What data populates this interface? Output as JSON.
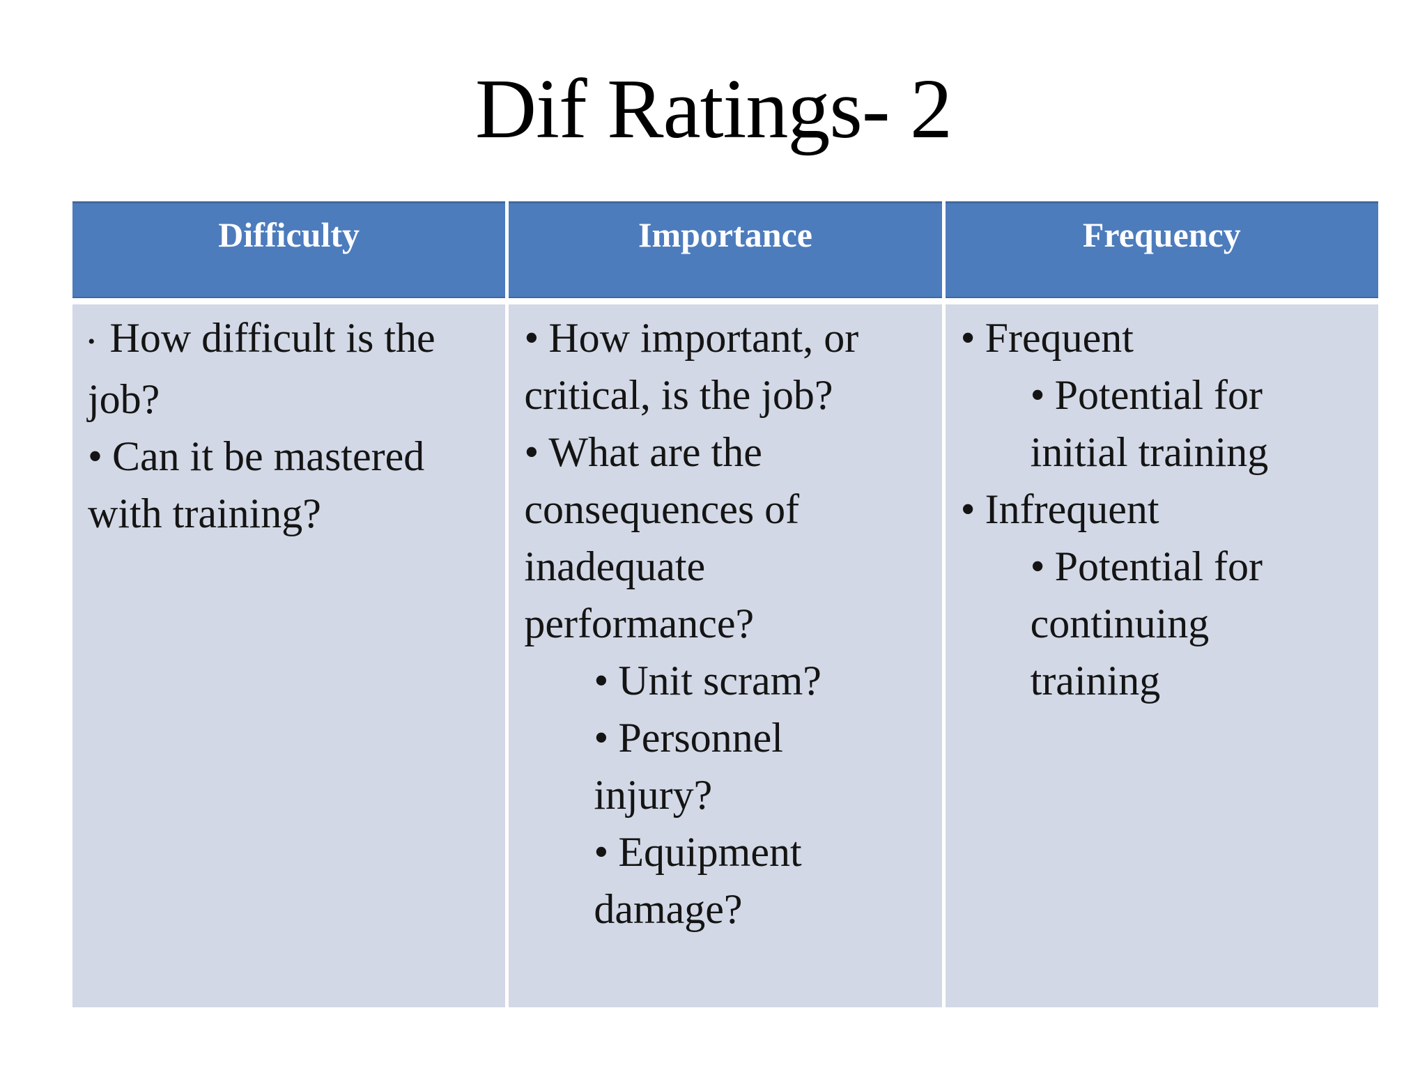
{
  "slide": {
    "title": "Dif Ratings- 2",
    "bullet_char": "•",
    "colors": {
      "header_bg": "#4d7cbd",
      "header_edge": "#40689e",
      "body_bg": "#d2d8e5",
      "header_text": "#ffffff",
      "body_text": "#141414",
      "title_text": "#000000"
    },
    "table": {
      "columns": [
        {
          "header": "Difficulty",
          "items": [
            {
              "level": 1,
              "small_bullet": true,
              "text": "How difficult is the\njob?"
            },
            {
              "level": 1,
              "text": "Can it be mastered\nwith training?"
            }
          ]
        },
        {
          "header": "Importance",
          "items": [
            {
              "level": 1,
              "text": "How important, or\ncritical, is the job?"
            },
            {
              "level": 1,
              "text": "What are the\nconsequences of\ninadequate\nperformance?"
            },
            {
              "level": 2,
              "text": "Unit scram?"
            },
            {
              "level": 2,
              "text": "Personnel\ninjury?"
            },
            {
              "level": 2,
              "text": "Equipment\ndamage?"
            }
          ]
        },
        {
          "header": "Frequency",
          "items": [
            {
              "level": 1,
              "text": "Frequent"
            },
            {
              "level": 2,
              "text": "Potential for\ninitial training"
            },
            {
              "level": 1,
              "text": "Infrequent"
            },
            {
              "level": 2,
              "text": "Potential for\ncontinuing\ntraining"
            }
          ]
        }
      ]
    }
  }
}
